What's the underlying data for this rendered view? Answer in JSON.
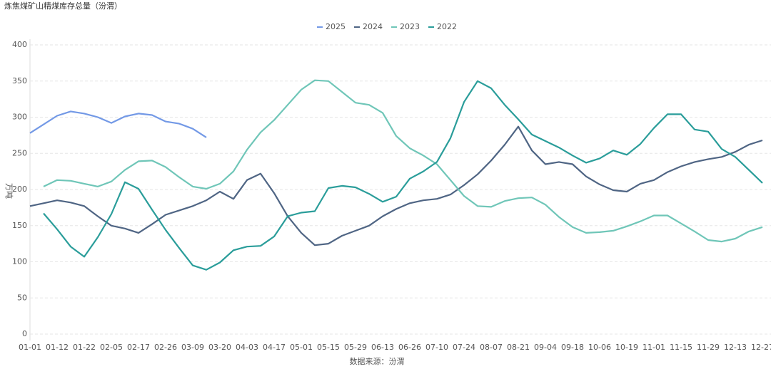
{
  "chart_data": {
    "type": "line",
    "title": "炼焦煤矿山精煤库存总量（汾渭）",
    "y_label": "万吨",
    "x_label": "数据来源：汾渭",
    "categories": [
      "01-01",
      null,
      "01-12",
      null,
      "01-22",
      null,
      "02-05",
      null,
      "02-17",
      null,
      "02-26",
      null,
      "03-09",
      null,
      "03-20",
      null,
      "04-03",
      null,
      "04-17",
      null,
      "05-01",
      null,
      "05-15",
      null,
      "05-29",
      null,
      "06-13",
      null,
      "06-26",
      null,
      "07-10",
      null,
      "07-24",
      null,
      "08-07",
      null,
      "08-21",
      null,
      "09-04",
      null,
      "09-18",
      null,
      "10-06",
      null,
      "10-19",
      null,
      "11-01",
      null,
      "11-15",
      null,
      "11-29",
      null,
      "12-13",
      null,
      "12-27"
    ],
    "series": [
      {
        "name": "2025",
        "color": "#7399e6",
        "values": [
          278,
          290,
          302,
          308,
          305,
          300,
          292,
          301,
          305,
          303,
          294,
          291,
          284,
          272,
          null,
          null,
          null,
          null,
          null,
          null,
          null,
          null,
          null,
          null,
          null,
          null,
          null,
          null,
          null,
          null,
          null,
          null,
          null,
          null,
          null,
          null,
          null,
          null,
          null,
          null,
          null,
          null,
          null,
          null,
          null,
          null,
          null,
          null,
          null,
          null,
          null,
          null,
          null,
          null,
          null
        ]
      },
      {
        "name": "2024",
        "color": "#4f6584",
        "values": [
          177,
          181,
          185,
          182,
          177,
          163,
          150,
          146,
          140,
          152,
          165,
          171,
          177,
          185,
          197,
          187,
          213,
          222,
          195,
          163,
          140,
          123,
          125,
          136,
          143,
          150,
          163,
          173,
          181,
          185,
          187,
          193,
          206,
          221,
          240,
          262,
          287,
          254,
          235,
          238,
          235,
          218,
          207,
          199,
          197,
          208,
          213,
          224,
          232,
          238,
          242,
          245,
          252,
          262,
          268
        ]
      },
      {
        "name": "2023",
        "color": "#6fc6b8",
        "values": [
          null,
          204,
          213,
          212,
          208,
          204,
          211,
          227,
          239,
          240,
          231,
          217,
          204,
          201,
          208,
          225,
          255,
          279,
          296,
          317,
          338,
          351,
          350,
          335,
          320,
          317,
          306,
          274,
          257,
          247,
          235,
          213,
          191,
          177,
          176,
          184,
          188,
          189,
          179,
          162,
          148,
          140,
          141,
          143,
          149,
          156,
          164,
          164,
          153,
          142,
          130,
          128,
          132,
          142,
          148
        ]
      },
      {
        "name": "2022",
        "color": "#2a9d9a",
        "values": [
          null,
          167,
          145,
          121,
          107,
          134,
          166,
          210,
          201,
          172,
          144,
          119,
          95,
          89,
          99,
          116,
          121,
          122,
          135,
          163,
          168,
          170,
          202,
          205,
          203,
          194,
          183,
          190,
          215,
          225,
          238,
          271,
          321,
          350,
          340,
          317,
          297,
          276,
          267,
          258,
          247,
          237,
          243,
          254,
          248,
          263,
          285,
          304,
          304,
          283,
          280,
          256,
          245,
          227,
          209
        ]
      }
    ],
    "ylim": [
      0,
      400
    ],
    "yticks": [
      0,
      50,
      100,
      150,
      200,
      250,
      300,
      350,
      400
    ],
    "grid": true
  }
}
